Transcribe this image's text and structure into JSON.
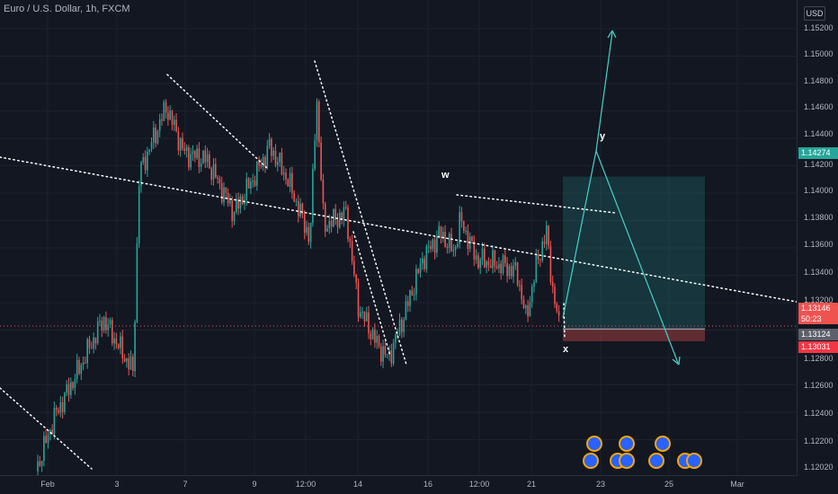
{
  "header": {
    "symbol_label": "Euro / U.S. Dollar, 1h, FXCM",
    "currency_button": "USD"
  },
  "axis": {
    "y_ticks": [
      "1.15200",
      "1.15000",
      "1.14800",
      "1.14600",
      "1.14400",
      "1.14200",
      "1.14000",
      "1.13800",
      "1.13600",
      "1.13400",
      "1.13200",
      "1.12800",
      "1.12600",
      "1.12400",
      "1.12200",
      "1.12020"
    ],
    "x_ticks": [
      "Feb",
      "3",
      "7",
      "9",
      "12:00",
      "14",
      "16",
      "12:00",
      "21",
      "23",
      "25",
      "Mar"
    ]
  },
  "price_tags": {
    "target": "1.14274",
    "current": "1.13146",
    "countdown": "50:23",
    "entry": "1.13124",
    "stop": "1.13031"
  },
  "wave_labels": {
    "w": "w",
    "x": "x",
    "y": "y"
  },
  "colors": {
    "background": "#131722",
    "bull": "#26a69a",
    "bear": "#ef5350",
    "target_zone": "#26a69a",
    "stop_zone": "#ef5350",
    "projection": "#45d3c8",
    "trendline": "#ffffff"
  },
  "chart_data": {
    "type": "candlestick",
    "instrument": "Euro / U.S. Dollar",
    "timeframe": "1h",
    "source": "FXCM",
    "ylim": [
      1.1202,
      1.1528
    ],
    "anchors": [
      {
        "x": "Feb",
        "close": 1.1205
      },
      {
        "x": "3",
        "close": 1.1318
      },
      {
        "x": "7",
        "close": 1.1465
      },
      {
        "x": "9",
        "close": 1.1425
      },
      {
        "x": "12:00",
        "close": 1.1452
      },
      {
        "x": "14",
        "close": 1.1345
      },
      {
        "x": "16",
        "close": 1.137
      },
      {
        "x": "12:00",
        "close": 1.1365
      },
      {
        "x": "21",
        "close": 1.136
      },
      {
        "x": "23",
        "close": 1.1314
      }
    ],
    "current_price": 1.13146,
    "position": {
      "entry": 1.13124,
      "target": 1.14274,
      "stop": 1.13031
    }
  }
}
